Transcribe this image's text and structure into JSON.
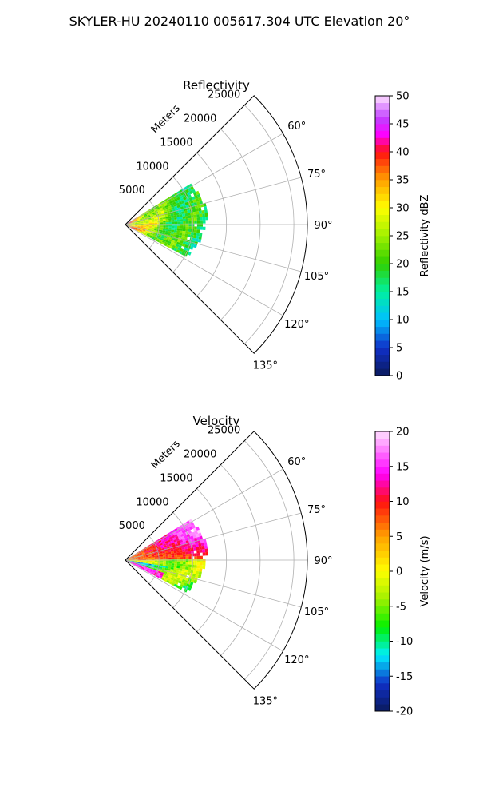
{
  "figure": {
    "suptitle": "SKYLER-HU  20240110  005617.304 UTC Elevation 20°"
  },
  "chart_data": [
    {
      "type": "heatmap",
      "title": "Reflectivity",
      "radial_label": "Meters",
      "radial_ticks": [
        "5000",
        "10000",
        "15000",
        "20000",
        "25000"
      ],
      "radial_tick_values": [
        5000,
        10000,
        15000,
        20000,
        25000
      ],
      "rmax": 27000,
      "data_extent_m": 12000,
      "azimuth_range_deg": [
        45,
        135
      ],
      "angle_ticks": [
        "60°",
        "75°",
        "90°",
        "105°",
        "120°",
        "135°"
      ],
      "angle_tick_values": [
        60,
        75,
        90,
        105,
        120,
        135
      ],
      "grid": true,
      "colorbar": {
        "label": "Reflectivity dBZ",
        "range": [
          0,
          50
        ],
        "ticks": [
          "0",
          "5",
          "10",
          "15",
          "20",
          "25",
          "30",
          "35",
          "40",
          "45",
          "50"
        ],
        "tick_values": [
          0,
          5,
          10,
          15,
          20,
          25,
          30,
          35,
          40,
          45,
          50
        ],
        "colors": [
          "#0a1a5c",
          "#1030c8",
          "#00c0ff",
          "#00f0a0",
          "#30d000",
          "#a0f000",
          "#ffff00",
          "#ffa000",
          "#ff1010",
          "#ff00ff",
          "#c040ff",
          "#ffe0ff"
        ],
        "color_stops": [
          0,
          5,
          10,
          15,
          20,
          25,
          30,
          35,
          40,
          43,
          46,
          50
        ]
      }
    },
    {
      "type": "heatmap",
      "title": "Velocity",
      "radial_label": "Meters",
      "radial_ticks": [
        "5000",
        "10000",
        "15000",
        "20000",
        "25000"
      ],
      "radial_tick_values": [
        5000,
        10000,
        15000,
        20000,
        25000
      ],
      "rmax": 27000,
      "data_extent_m": 12000,
      "azimuth_range_deg": [
        45,
        135
      ],
      "angle_ticks": [
        "60°",
        "75°",
        "90°",
        "105°",
        "120°",
        "135°"
      ],
      "angle_tick_values": [
        60,
        75,
        90,
        105,
        120,
        135
      ],
      "grid": true,
      "colorbar": {
        "label": "Velocity (m/s)",
        "range": [
          -20,
          20
        ],
        "ticks": [
          "-20",
          "-15",
          "-10",
          "-5",
          "0",
          "5",
          "10",
          "15",
          "20"
        ],
        "tick_values": [
          -20,
          -15,
          -10,
          -5,
          0,
          5,
          10,
          15,
          20
        ],
        "colors": [
          "#0a1a5c",
          "#1030c8",
          "#00f0ff",
          "#00f000",
          "#a0f000",
          "#ffff00",
          "#ffa000",
          "#ff1010",
          "#ff00ff",
          "#ffe0ff"
        ],
        "color_stops": [
          -20,
          -16,
          -12,
          -8,
          -4,
          0,
          5,
          10,
          14,
          20
        ]
      }
    }
  ]
}
